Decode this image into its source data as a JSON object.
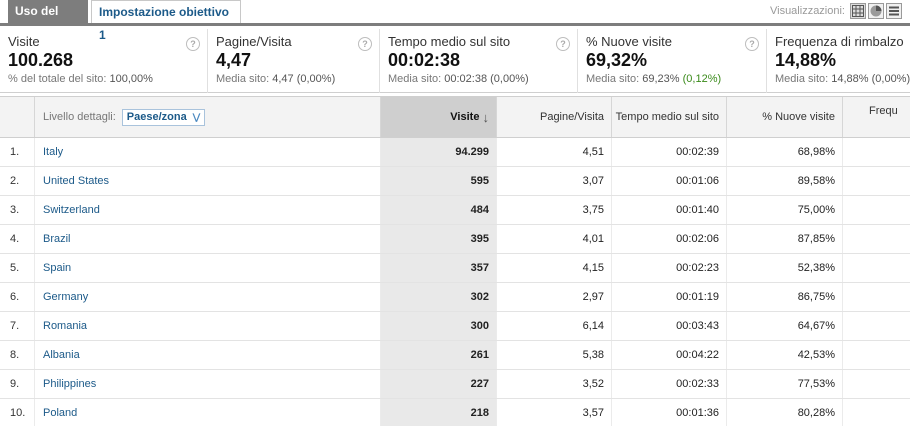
{
  "tabs": [
    {
      "label": "Uso del sito"
    },
    {
      "label": "Impostazione obiettivo 1"
    }
  ],
  "views": {
    "label": "Visualizzazioni:",
    "icons": [
      "table-view-icon",
      "pie-view-icon",
      "list-view-icon"
    ]
  },
  "summary": [
    {
      "label": "Visite",
      "value": "100.268",
      "sub_prefix": "% del totale del sito: ",
      "sub_value": "100,00%",
      "sub_delta": ""
    },
    {
      "label": "Pagine/Visita",
      "value": "4,47",
      "sub_prefix": "Media sito: ",
      "sub_value": "4,47 (0,00%)",
      "sub_delta": ""
    },
    {
      "label": "Tempo medio sul sito",
      "value": "00:02:38",
      "sub_prefix": "Media sito: ",
      "sub_value": "00:02:38 (0,00%)",
      "sub_delta": ""
    },
    {
      "label": "% Nuove visite",
      "value": "69,32%",
      "sub_prefix": "Media sito: ",
      "sub_value": "69,23%",
      "sub_delta": "(0,12%)"
    },
    {
      "label": "Frequenza di rimbalzo",
      "value": "14,88%",
      "sub_prefix": "Media sito: ",
      "sub_value": "14,88% (0,00%)",
      "sub_delta": ""
    }
  ],
  "table": {
    "dimension_label": "Livello dettagli:",
    "dimension_value": "Paese/zona",
    "columns": {
      "visits": "Visite",
      "ppv": "Pagine/Visita",
      "time": "Tempo medio sul sito",
      "new": "% Nuove visite",
      "bounce": "Frequ"
    },
    "sort_indicator": "↓",
    "rows": [
      {
        "idx": "1.",
        "country": "Italy",
        "visits": "94.299",
        "ppv": "4,51",
        "time": "00:02:39",
        "new": "68,98%"
      },
      {
        "idx": "2.",
        "country": "United States",
        "visits": "595",
        "ppv": "3,07",
        "time": "00:01:06",
        "new": "89,58%"
      },
      {
        "idx": "3.",
        "country": "Switzerland",
        "visits": "484",
        "ppv": "3,75",
        "time": "00:01:40",
        "new": "75,00%"
      },
      {
        "idx": "4.",
        "country": "Brazil",
        "visits": "395",
        "ppv": "4,01",
        "time": "00:02:06",
        "new": "87,85%"
      },
      {
        "idx": "5.",
        "country": "Spain",
        "visits": "357",
        "ppv": "4,15",
        "time": "00:02:23",
        "new": "52,38%"
      },
      {
        "idx": "6.",
        "country": "Germany",
        "visits": "302",
        "ppv": "2,97",
        "time": "00:01:19",
        "new": "86,75%"
      },
      {
        "idx": "7.",
        "country": "Romania",
        "visits": "300",
        "ppv": "6,14",
        "time": "00:03:43",
        "new": "64,67%"
      },
      {
        "idx": "8.",
        "country": "Albania",
        "visits": "261",
        "ppv": "5,38",
        "time": "00:04:22",
        "new": "42,53%"
      },
      {
        "idx": "9.",
        "country": "Philippines",
        "visits": "227",
        "ppv": "3,52",
        "time": "00:02:33",
        "new": "77,53%"
      },
      {
        "idx": "10.",
        "country": "Poland",
        "visits": "218",
        "ppv": "3,57",
        "time": "00:01:36",
        "new": "80,28%"
      }
    ]
  },
  "colors": {
    "link": "#1c5a89",
    "tab_active": "#7d7d7d",
    "delta_green": "#3a8a1a",
    "sorted_column": "#e9e9e9"
  }
}
